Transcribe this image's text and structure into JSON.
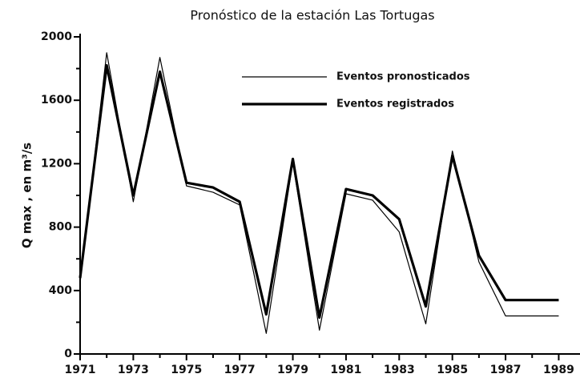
{
  "chart_data": {
    "type": "line",
    "title": "Pronóstico de la estación  Las Tortugas",
    "y_label": "Q max , en m³/s",
    "x": [
      1971,
      1972,
      1973,
      1974,
      1975,
      1976,
      1977,
      1978,
      1979,
      1980,
      1981,
      1982,
      1983,
      1984,
      1985,
      1986,
      1987,
      1988,
      1989
    ],
    "series": [
      {
        "name": "Eventos pronosticados",
        "color": "#000000",
        "width": 1.2,
        "values": [
          450,
          1900,
          960,
          1870,
          1060,
          1020,
          940,
          130,
          1210,
          150,
          1010,
          970,
          770,
          190,
          1280,
          580,
          240,
          240,
          240
        ]
      },
      {
        "name": "Eventos registrados",
        "color": "#000000",
        "width": 3.2,
        "values": [
          480,
          1820,
          1000,
          1780,
          1080,
          1050,
          960,
          250,
          1230,
          230,
          1040,
          1000,
          850,
          300,
          1250,
          620,
          340,
          340,
          340
        ]
      }
    ],
    "xlim": [
      1971,
      1989.8
    ],
    "xticks": [
      1971,
      1973,
      1975,
      1977,
      1979,
      1981,
      1983,
      1985,
      1987,
      1989
    ],
    "xminor_ticks": [
      1972,
      1974,
      1976,
      1978,
      1980,
      1982,
      1984,
      1986,
      1988
    ],
    "ylim": [
      0,
      2000
    ],
    "yticks": [
      0,
      400,
      800,
      1200,
      1600,
      2000
    ],
    "yminor_ticks": [
      200,
      600,
      1000,
      1400,
      1800
    ],
    "grid": false
  }
}
